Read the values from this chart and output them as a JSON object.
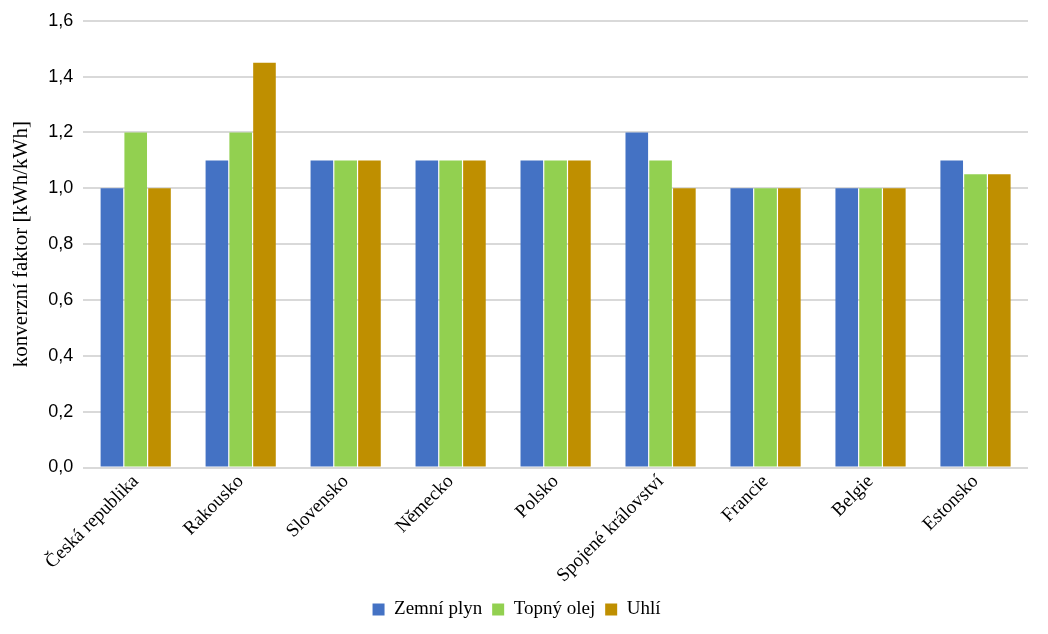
{
  "chart_data": {
    "type": "bar",
    "ylabel": "konverzní faktor [kWh/kWh]",
    "categories": [
      "Česká republika",
      "Rakousko",
      "Slovensko",
      "Německo",
      "Polsko",
      "Spojené království",
      "Francie",
      "Belgie",
      "Estonsko"
    ],
    "series": [
      {
        "name": "Zemní plyn",
        "color": "#4472c4",
        "values": [
          1.0,
          1.1,
          1.1,
          1.1,
          1.1,
          1.2,
          1.0,
          1.0,
          1.1
        ]
      },
      {
        "name": "Topný olej",
        "color": "#92d050",
        "values": [
          1.2,
          1.2,
          1.1,
          1.1,
          1.1,
          1.1,
          1.0,
          1.0,
          1.05
        ]
      },
      {
        "name": "Uhlí",
        "color": "#bf8f00",
        "values": [
          1.0,
          1.45,
          1.1,
          1.1,
          1.1,
          1.0,
          1.0,
          1.0,
          1.05
        ]
      }
    ],
    "ylim": [
      0,
      1.6
    ],
    "yticks": [
      {
        "value": 0,
        "label": "0,0"
      },
      {
        "value": 0.2,
        "label": "0,2"
      },
      {
        "value": 0.4,
        "label": "0,4"
      },
      {
        "value": 0.6,
        "label": "0,6"
      },
      {
        "value": 0.8,
        "label": "0,8"
      },
      {
        "value": 1.0,
        "label": "1,0"
      },
      {
        "value": 1.2,
        "label": "1,2"
      },
      {
        "value": 1.4,
        "label": "1,4"
      },
      {
        "value": 1.6,
        "label": "1,6"
      }
    ],
    "grid": "y",
    "legend": "bottom"
  }
}
